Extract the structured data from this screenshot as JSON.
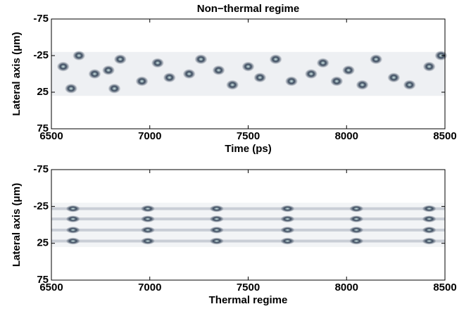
{
  "chart_data": [
    {
      "type": "scatter",
      "title": "Non−thermal regime",
      "xlabel": "Time (ps)",
      "ylabel": "Lateral axis (μm)",
      "xlim": [
        6500,
        8500
      ],
      "xticks": [
        6500,
        7000,
        7500,
        8000,
        8500
      ],
      "ylim": [
        -75,
        75
      ],
      "yticks": [
        -75,
        -25,
        25,
        75
      ],
      "y_reversed": true,
      "series": [
        {
          "color": "#3b4a5e",
          "x": [
            6560,
            6600,
            6640,
            6720,
            6790,
            6820,
            6850,
            6960,
            7040,
            7100,
            7200,
            7260,
            7350,
            7420,
            7500,
            7560,
            7640,
            7720,
            7820,
            7880,
            7950,
            8010,
            8080,
            8150,
            8240,
            8320,
            8420,
            8480
          ],
          "y": [
            -10,
            20,
            -25,
            0,
            -5,
            20,
            -20,
            10,
            -15,
            5,
            0,
            -20,
            -5,
            15,
            -10,
            5,
            -20,
            10,
            0,
            -15,
            10,
            -5,
            15,
            -20,
            5,
            15,
            -10,
            -25
          ]
        }
      ]
    },
    {
      "type": "scatter",
      "xlabel": "Thermal regime",
      "ylabel": "Lateral axis (μm)",
      "xlim": [
        6500,
        8500
      ],
      "xticks": [
        6500,
        7000,
        7500,
        8000,
        8500
      ],
      "ylim": [
        -75,
        75
      ],
      "yticks": [
        -75,
        -25,
        25,
        75
      ],
      "y_reversed": true,
      "series": [
        {
          "color": "#3b4a5e",
          "x": [
            6610,
            6610,
            6610,
            6610,
            6990,
            6990,
            6990,
            6990,
            7340,
            7340,
            7340,
            7340,
            7700,
            7700,
            7700,
            7700,
            8050,
            8050,
            8050,
            8050,
            8420,
            8420,
            8420,
            8420
          ],
          "y": [
            -22,
            -8,
            7,
            22,
            -22,
            -8,
            7,
            22,
            -22,
            -8,
            7,
            22,
            -22,
            -8,
            7,
            22,
            -22,
            -8,
            7,
            22,
            -22,
            -8,
            7,
            22
          ]
        }
      ]
    }
  ]
}
